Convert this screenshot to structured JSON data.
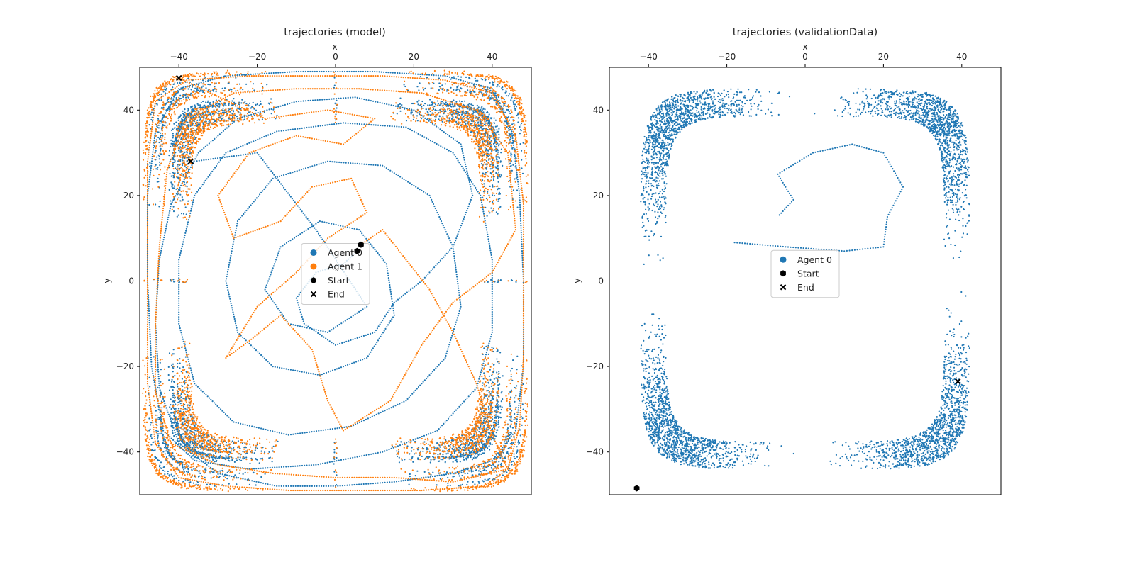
{
  "chart_data": [
    {
      "type": "scatter",
      "title": "trajectories (model)",
      "xlabel": "x",
      "ylabel": "y",
      "xlim": [
        -50,
        50
      ],
      "ylim": [
        50,
        -50
      ],
      "y_inverted": true,
      "x_axis_position": "top",
      "xticks": [
        -40,
        -20,
        0,
        20,
        40
      ],
      "yticks": [
        -40,
        -20,
        0,
        20,
        40
      ],
      "xtick_labels": [
        "−40",
        "−20",
        "0",
        "20",
        "40"
      ],
      "ytick_labels": [
        "−40",
        "−20",
        "0",
        "20",
        "40"
      ],
      "grid": false,
      "legend": {
        "placement": "center",
        "entries": [
          {
            "label": "Agent 0",
            "marker": "circle",
            "color": "#1f77b4"
          },
          {
            "label": "Agent 1",
            "marker": "circle",
            "color": "#ff7f0e"
          },
          {
            "label": "Start",
            "marker": "hexagon",
            "color": "#000000"
          },
          {
            "label": "End",
            "marker": "x",
            "color": "#000000"
          }
        ]
      },
      "series": [
        {
          "name": "Agent 0",
          "color": "#1f77b4",
          "sampled_path": [
            [
              5.5,
              7
            ],
            [
              2,
              4
            ],
            [
              -5,
              2
            ],
            [
              -10,
              -4
            ],
            [
              -8,
              -10
            ],
            [
              0,
              -15
            ],
            [
              10,
              -12
            ],
            [
              15,
              -5
            ],
            [
              22,
              0
            ],
            [
              30,
              8
            ],
            [
              35,
              20
            ],
            [
              32,
              32
            ],
            [
              20,
              40
            ],
            [
              5,
              43
            ],
            [
              -10,
              42
            ],
            [
              -25,
              38
            ],
            [
              -35,
              30
            ],
            [
              -42,
              18
            ],
            [
              -45,
              5
            ],
            [
              -46,
              -10
            ],
            [
              -45,
              -25
            ],
            [
              -40,
              -38
            ],
            [
              -30,
              -45
            ],
            [
              -15,
              -48
            ],
            [
              0,
              -48
            ],
            [
              15,
              -47
            ],
            [
              30,
              -45
            ],
            [
              40,
              -42
            ],
            [
              46,
              -35
            ],
            [
              48,
              -20
            ],
            [
              48,
              0
            ],
            [
              47,
              20
            ],
            [
              45,
              35
            ],
            [
              40,
              45
            ],
            [
              28,
              48
            ],
            [
              10,
              49
            ],
            [
              -10,
              49
            ],
            [
              -28,
              48
            ],
            [
              -40,
              45
            ],
            [
              -46,
              35
            ],
            [
              -48,
              20
            ],
            [
              -48,
              0
            ],
            [
              -47,
              -20
            ],
            [
              -44,
              -35
            ],
            [
              -36,
              -42
            ],
            [
              -22,
              -44
            ],
            [
              -5,
              -43
            ],
            [
              12,
              -40
            ],
            [
              26,
              -35
            ],
            [
              36,
              -25
            ],
            [
              40,
              -12
            ],
            [
              40,
              5
            ],
            [
              37,
              20
            ],
            [
              30,
              30
            ],
            [
              18,
              36
            ],
            [
              2,
              37
            ],
            [
              -15,
              35
            ],
            [
              -28,
              30
            ],
            [
              -36,
              20
            ],
            [
              -40,
              5
            ],
            [
              -40,
              -10
            ],
            [
              -36,
              -24
            ],
            [
              -26,
              -33
            ],
            [
              -12,
              -36
            ],
            [
              4,
              -34
            ],
            [
              18,
              -28
            ],
            [
              28,
              -18
            ],
            [
              32,
              -6
            ],
            [
              30,
              8
            ],
            [
              24,
              20
            ],
            [
              12,
              27
            ],
            [
              -2,
              28
            ],
            [
              -16,
              24
            ],
            [
              -25,
              14
            ],
            [
              -28,
              0
            ],
            [
              -25,
              -12
            ],
            [
              -16,
              -20
            ],
            [
              -4,
              -22
            ],
            [
              8,
              -18
            ],
            [
              15,
              -8
            ],
            [
              13,
              4
            ],
            [
              6,
              12
            ],
            [
              -4,
              14
            ],
            [
              -14,
              8
            ],
            [
              -18,
              -2
            ],
            [
              -12,
              -10
            ],
            [
              -2,
              -12
            ],
            [
              8,
              -6
            ],
            [
              -5,
              12
            ],
            [
              -20,
              30
            ],
            [
              -36,
              28
            ]
          ]
        },
        {
          "name": "Agent 1",
          "color": "#ff7f0e",
          "sampled_path": [
            [
              6.5,
              8.5
            ],
            [
              12,
              12
            ],
            [
              18,
              5
            ],
            [
              24,
              -2
            ],
            [
              30,
              -12
            ],
            [
              36,
              -24
            ],
            [
              40,
              -36
            ],
            [
              44,
              -44
            ],
            [
              38,
              -48
            ],
            [
              22,
              -49
            ],
            [
              5,
              -49
            ],
            [
              -12,
              -49
            ],
            [
              -28,
              -48
            ],
            [
              -40,
              -46
            ],
            [
              -46,
              -38
            ],
            [
              -48,
              -24
            ],
            [
              -48,
              -8
            ],
            [
              -48,
              10
            ],
            [
              -48,
              28
            ],
            [
              -46,
              42
            ],
            [
              -38,
              47
            ],
            [
              -22,
              48
            ],
            [
              -5,
              48
            ],
            [
              12,
              48
            ],
            [
              28,
              47
            ],
            [
              40,
              44
            ],
            [
              46,
              34
            ],
            [
              48,
              18
            ],
            [
              48,
              0
            ],
            [
              48,
              -18
            ],
            [
              47,
              -34
            ],
            [
              44,
              -44
            ],
            [
              30,
              -47
            ],
            [
              15,
              -46
            ],
            [
              0,
              -46
            ],
            [
              -16,
              -45
            ],
            [
              -30,
              -43
            ],
            [
              -42,
              -38
            ],
            [
              -46,
              -26
            ],
            [
              -46,
              -10
            ],
            [
              -45,
              8
            ],
            [
              -43,
              26
            ],
            [
              -38,
              38
            ],
            [
              -26,
              44
            ],
            [
              -10,
              45
            ],
            [
              6,
              45
            ],
            [
              22,
              44
            ],
            [
              36,
              40
            ],
            [
              44,
              30
            ],
            [
              46,
              12
            ],
            [
              40,
              2
            ],
            [
              30,
              -5
            ],
            [
              22,
              -15
            ],
            [
              14,
              -28
            ],
            [
              2,
              -35
            ],
            [
              -2,
              -28
            ],
            [
              -6,
              -16
            ],
            [
              -14,
              -8
            ],
            [
              -22,
              -14
            ],
            [
              -28,
              -18
            ],
            [
              -20,
              -6
            ],
            [
              -10,
              2
            ],
            [
              -2,
              10
            ],
            [
              8,
              16
            ],
            [
              4,
              24
            ],
            [
              -6,
              22
            ],
            [
              -14,
              14
            ],
            [
              -26,
              10
            ],
            [
              -30,
              20
            ],
            [
              -22,
              30
            ],
            [
              -10,
              34
            ],
            [
              2,
              32
            ],
            [
              10,
              38
            ],
            [
              -2,
              40
            ],
            [
              -18,
              38
            ],
            [
              -32,
              44
            ],
            [
              -40,
              47.5
            ]
          ]
        }
      ],
      "start_points": [
        [
          5.5,
          7
        ],
        [
          6.5,
          8.5
        ]
      ],
      "end_points": [
        [
          -37,
          28
        ],
        [
          -40,
          47.5
        ]
      ]
    },
    {
      "type": "scatter",
      "title": "trajectories (validationData)",
      "xlabel": "x",
      "ylabel": "y",
      "xlim": [
        -50,
        50
      ],
      "ylim": [
        50,
        -50
      ],
      "y_inverted": true,
      "x_axis_position": "top",
      "xticks": [
        -40,
        -20,
        0,
        20,
        40
      ],
      "yticks": [
        -40,
        -20,
        0,
        20,
        40
      ],
      "xtick_labels": [
        "−40",
        "−20",
        "0",
        "20",
        "40"
      ],
      "ytick_labels": [
        "−40",
        "−20",
        "0",
        "20",
        "40"
      ],
      "grid": false,
      "legend": {
        "placement": "center",
        "entries": [
          {
            "label": "Agent 0",
            "marker": "circle",
            "color": "#1f77b4"
          },
          {
            "label": "Start",
            "marker": "hexagon",
            "color": "#000000"
          },
          {
            "label": "End",
            "marker": "x",
            "color": "#000000"
          }
        ]
      },
      "series": [
        {
          "name": "Agent 0",
          "color": "#1f77b4",
          "shape": "rounded-square loop",
          "outer_extent": {
            "x": [
              -42,
              42
            ],
            "y": [
              -44,
              45
            ]
          },
          "inner_extent": {
            "x": [
              -36,
              35
            ],
            "y": [
              -38,
              38
            ]
          },
          "stray_path": [
            [
              -18,
              9
            ],
            [
              -5,
              8
            ],
            [
              10,
              7
            ],
            [
              20,
              8
            ],
            [
              21,
              15
            ],
            [
              25,
              22
            ],
            [
              20,
              30
            ],
            [
              12,
              32
            ],
            [
              2,
              30
            ],
            [
              -7,
              25
            ],
            [
              -3,
              19
            ],
            [
              -7,
              15
            ]
          ]
        }
      ],
      "start_points": [
        [
          -43,
          -48.5
        ]
      ],
      "end_points": [
        [
          39,
          -23.5
        ]
      ]
    }
  ]
}
